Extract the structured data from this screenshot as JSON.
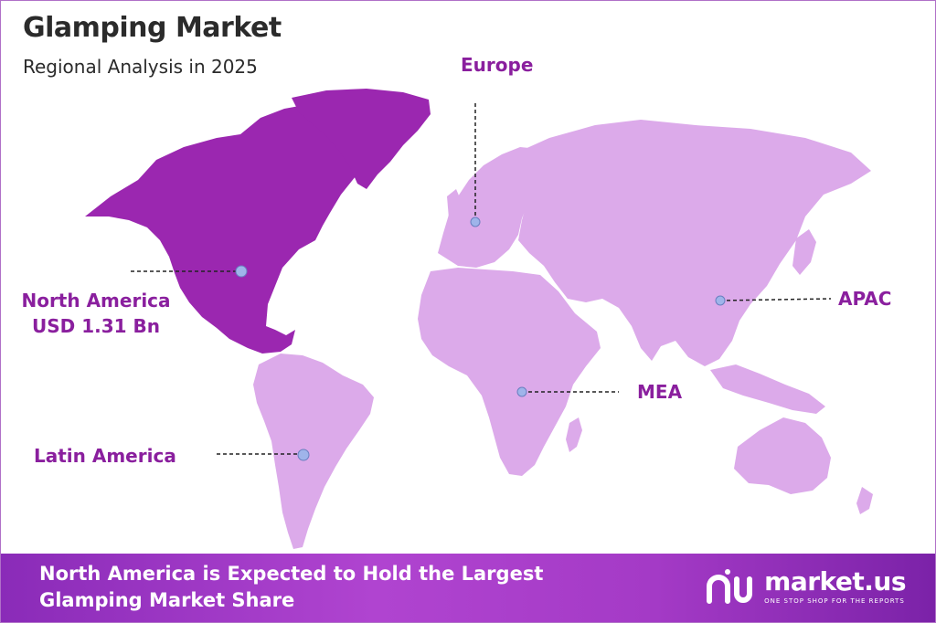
{
  "header": {
    "title": "Glamping Market",
    "subtitle": "Regional Analysis in 2025"
  },
  "regions": {
    "north_america": {
      "name": "North America",
      "value": "USD 1.31 Bn"
    },
    "europe": {
      "name": "Europe"
    },
    "apac": {
      "name": "APAC"
    },
    "mea": {
      "name": "MEA"
    },
    "latin_america": {
      "name": "Latin America"
    }
  },
  "banner": {
    "line1": "North America is Expected to Hold the Largest",
    "line2": "Glamping Market Share"
  },
  "brand": {
    "name": "market.us",
    "tagline": "ONE STOP SHOP FOR THE REPORTS"
  },
  "colors": {
    "highlight_region": "#9b27b0",
    "other_regions": "#dcaaea",
    "label_text": "#8a1f9e",
    "marker": "#9fb4ea",
    "banner": "#a43ac6"
  }
}
